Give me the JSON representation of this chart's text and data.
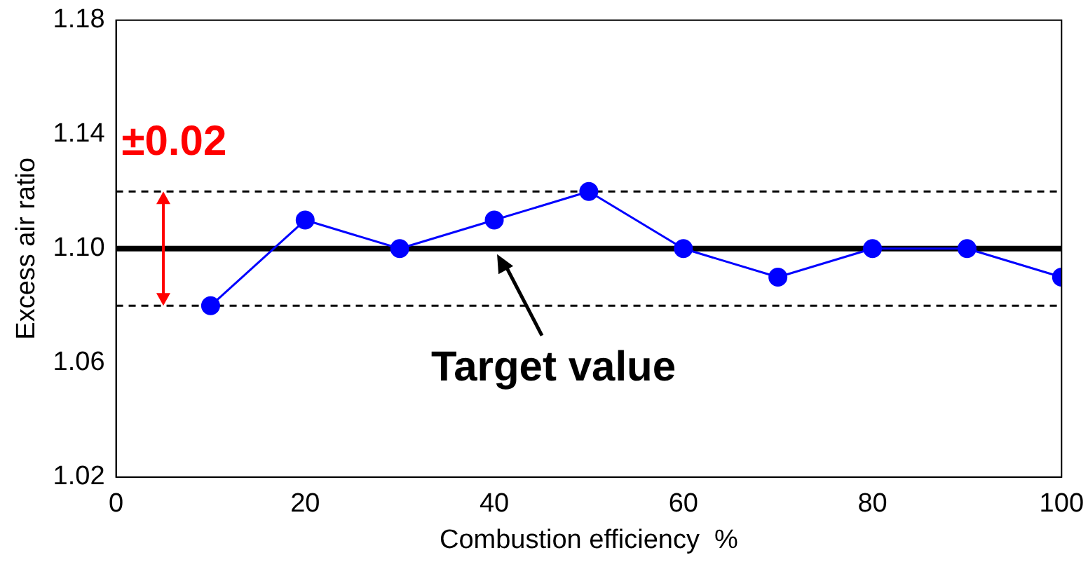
{
  "chart_data": {
    "type": "line",
    "xlabel": "Combustion efficiency  %",
    "ylabel": "Excess air ratio",
    "x": [
      10,
      20,
      30,
      40,
      50,
      60,
      70,
      80,
      90,
      100
    ],
    "series": [
      {
        "color": "#0000ff",
        "values": [
          1.08,
          1.11,
          1.1,
          1.11,
          1.12,
          1.1,
          1.09,
          1.1,
          1.1,
          1.09
        ]
      }
    ],
    "xlim": [
      0,
      100
    ],
    "xticks": [
      0,
      20,
      40,
      60,
      80,
      100
    ],
    "ylim": [
      1.02,
      1.18
    ],
    "yticks": [
      1.02,
      1.06,
      {
        "value": 1.1,
        "label": "1.10"
      },
      1.14,
      1.18
    ],
    "marker": "circle",
    "line_style": "solid",
    "grid": false,
    "legend": false,
    "ref_lines": [
      {
        "axis": "y",
        "value": 1.1,
        "color": "#000000",
        "line_style": "solid"
      },
      {
        "axis": "y",
        "value": 1.12,
        "color": "#000000",
        "line_style": "dashed"
      },
      {
        "axis": "y",
        "value": 1.08,
        "color": "#000000",
        "line_style": "dashed"
      }
    ],
    "annotations": [
      "±0.02",
      {
        "text": "Target value",
        "x": 40,
        "y": 1.1
      }
    ]
  }
}
